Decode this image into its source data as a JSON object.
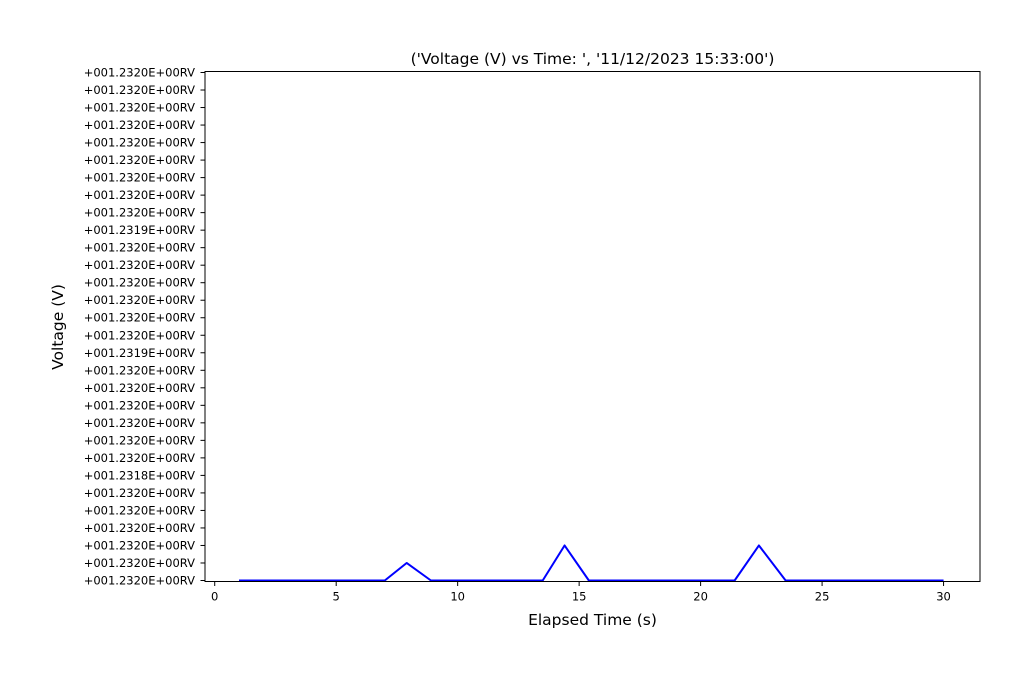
{
  "chart_data": {
    "type": "line",
    "title": "('Voltage (V) vs Time: ', '11/12/2023 15:33:00')",
    "xlabel": "Elapsed Time (s)",
    "ylabel": "Voltage (V)",
    "xlim": [
      -0.4,
      31.5
    ],
    "x_ticks": [
      0,
      5,
      10,
      15,
      20,
      25,
      30
    ],
    "y_tick_labels": [
      "+001.2320E+00RV",
      "+001.2320E+00RV",
      "+001.2320E+00RV",
      "+001.2320E+00RV",
      "+001.2320E+00RV",
      "+001.2320E+00RV",
      "+001.2318E+00RV",
      "+001.2320E+00RV",
      "+001.2320E+00RV",
      "+001.2320E+00RV",
      "+001.2320E+00RV",
      "+001.2320E+00RV",
      "+001.2320E+00RV",
      "+001.2319E+00RV",
      "+001.2320E+00RV",
      "+001.2320E+00RV",
      "+001.2320E+00RV",
      "+001.2320E+00RV",
      "+001.2320E+00RV",
      "+001.2320E+00RV",
      "+001.2319E+00RV",
      "+001.2320E+00RV",
      "+001.2320E+00RV",
      "+001.2320E+00RV",
      "+001.2320E+00RV",
      "+001.2320E+00RV",
      "+001.2320E+00RV",
      "+001.2320E+00RV",
      "+001.2320E+00RV",
      "+001.2320E+00RV"
    ],
    "y_scale": "categorical",
    "grid": false,
    "series": [
      {
        "color": "#0000ff",
        "x": [
          1,
          2,
          3,
          4,
          5,
          6,
          7,
          7.9,
          8.9,
          10,
          11,
          12,
          13,
          13.5,
          14.4,
          15.4,
          16,
          17,
          18,
          19,
          20,
          21,
          21.4,
          22.4,
          23.5,
          25,
          27,
          29,
          30
        ],
        "y_category_index": [
          0,
          0,
          0,
          0,
          0,
          0,
          0,
          1,
          0,
          0,
          0,
          0,
          0,
          0,
          2,
          0,
          0,
          0,
          0,
          0,
          0,
          0,
          0,
          2,
          0,
          0,
          0,
          0,
          0
        ]
      }
    ]
  }
}
